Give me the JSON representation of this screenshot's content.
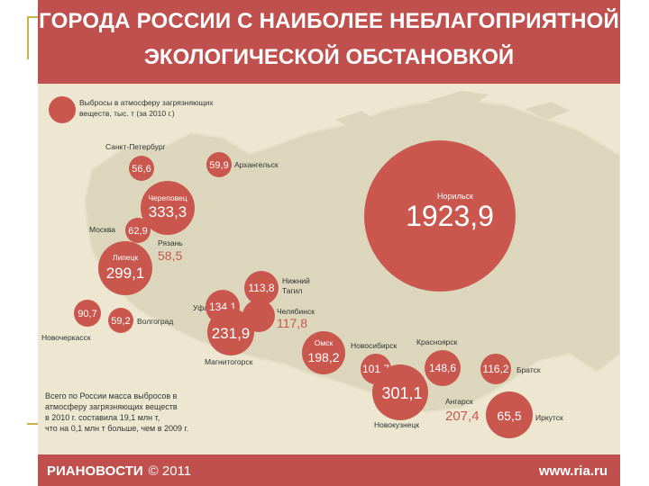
{
  "title": {
    "line1": "ГОРОДА РОССИИ С НАИБОЛЕЕ НЕБЛАГОПРИЯТНОЙ",
    "line2": "ЭКОЛОГИЧЕСКОЙ ОБСТАНОВКОЙ"
  },
  "legend": {
    "line1": "Выбросы в атмосферу загрязняющих",
    "line2": "веществ, тыс. т (за 2010 г.)"
  },
  "note": {
    "line1": "Всего по России масса выбросов в",
    "line2": "атмосферу загрязняющих веществ",
    "line3": "в 2010 г. составила 19,1 млн т,",
    "line4": "что на 0,1 млн т больше, чем в 2009 г."
  },
  "footer": {
    "logo": "РИАНОВОСТИ",
    "copyright": "© 2011",
    "site": "www.ria.ru"
  },
  "colors": {
    "header": "#c0504d",
    "circle": "#c9574d",
    "map_land": "#dcd6bd",
    "background": "#ede7d2",
    "highlight_text": "#c9574d"
  },
  "cities": [
    {
      "name": "Санкт-Петербург",
      "value": "56,6"
    },
    {
      "name": "Архангельск",
      "value": "59,9"
    },
    {
      "name": "Череповец",
      "value": "333,3"
    },
    {
      "name": "Москва",
      "value": "62,9"
    },
    {
      "name": "Рязань",
      "value": "58,5"
    },
    {
      "name": "Липецк",
      "value": "299,1"
    },
    {
      "name": "Новочеркасск",
      "value": "90,7"
    },
    {
      "name": "Волгоград",
      "value": "59,2"
    },
    {
      "name": "Нижний Тагил",
      "value": "113,8"
    },
    {
      "name": "Уфа",
      "value": "134,1"
    },
    {
      "name": "Челябинск",
      "value": "117,8"
    },
    {
      "name": "Магнитогорск",
      "value": "231,9"
    },
    {
      "name": "Омск",
      "value": "198,2"
    },
    {
      "name": "Новосибирск",
      "value": "101,7"
    },
    {
      "name": "Новокузнецк",
      "value": "301,1"
    },
    {
      "name": "Красноярск",
      "value": "148,6"
    },
    {
      "name": "Норильск",
      "value": "1923,9"
    },
    {
      "name": "Братск",
      "value": "116,2"
    },
    {
      "name": "Ангарск",
      "value": "207,4"
    },
    {
      "name": "Иркутск",
      "value": "65,5"
    }
  ]
}
